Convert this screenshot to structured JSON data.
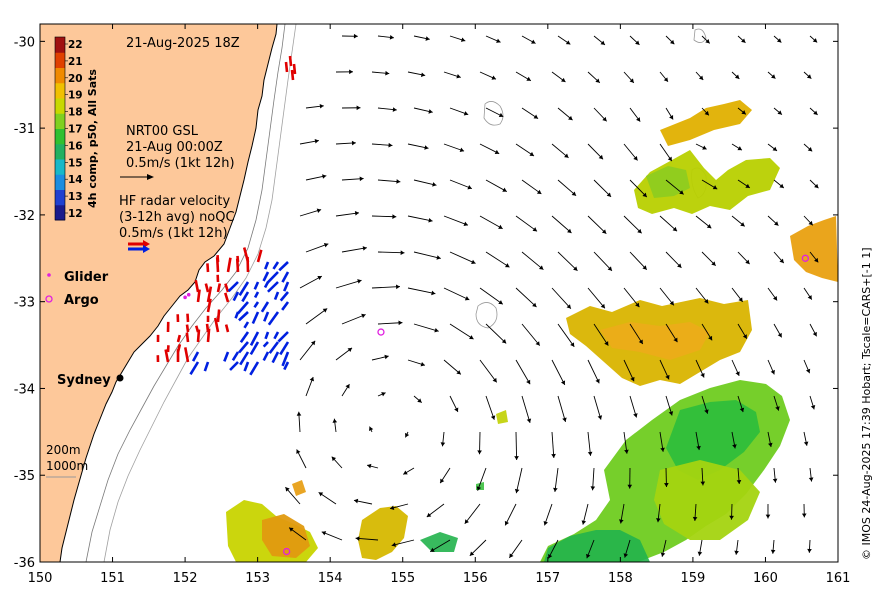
{
  "map": {
    "date_label": "21-Aug-2025 18Z",
    "lon_ticks": [
      "150",
      "151",
      "152",
      "153",
      "154",
      "155",
      "156",
      "157",
      "158",
      "159",
      "160",
      "161"
    ],
    "lat_ticks": [
      "-30",
      "-31",
      "-32",
      "-33",
      "-34",
      "-35",
      "-36"
    ],
    "lon_range": [
      150,
      161
    ],
    "lat_range": [
      -36,
      -29.8
    ],
    "land_color": "#fdc89a",
    "ocean_color": "#ffffff"
  },
  "colorbar": {
    "label": "4h comp, p50, All Sats",
    "ticks": [
      "22",
      "21",
      "20",
      "19",
      "18",
      "17",
      "16",
      "15",
      "14",
      "13",
      "12"
    ],
    "range": [
      12,
      22
    ],
    "colors": [
      "#1a1a8c",
      "#2040d0",
      "#1b8de0",
      "#18b8c8",
      "#22b060",
      "#30c030",
      "#80d020",
      "#c8d800",
      "#f0c000",
      "#f08a00",
      "#e04000",
      "#a01010"
    ]
  },
  "legend": {
    "gsl_title": "NRT00 GSL",
    "gsl_time": "21-Aug 00:00Z",
    "gsl_scale": "0.5m/s (1kt 12h)",
    "hf_title": "HF radar velocity",
    "hf_sub": "(3-12h avg) noQC",
    "hf_scale": "0.5m/s (1kt 12h)",
    "glider": "Glider",
    "argo": "Argo",
    "city": "Sydney",
    "depth_200": "200m",
    "depth_1000": "1000m"
  },
  "credit": "© IMOS 24-Aug-2025 17:39 Hobart; Tscale=CARS+[-1 1]",
  "argo_floats": [
    [
      154.7,
      -33.35
    ],
    [
      153.4,
      -35.88
    ],
    [
      160.55,
      -32.5
    ]
  ],
  "glider_positions": [
    [
      152.0,
      -32.95
    ],
    [
      152.05,
      -32.92
    ]
  ]
}
